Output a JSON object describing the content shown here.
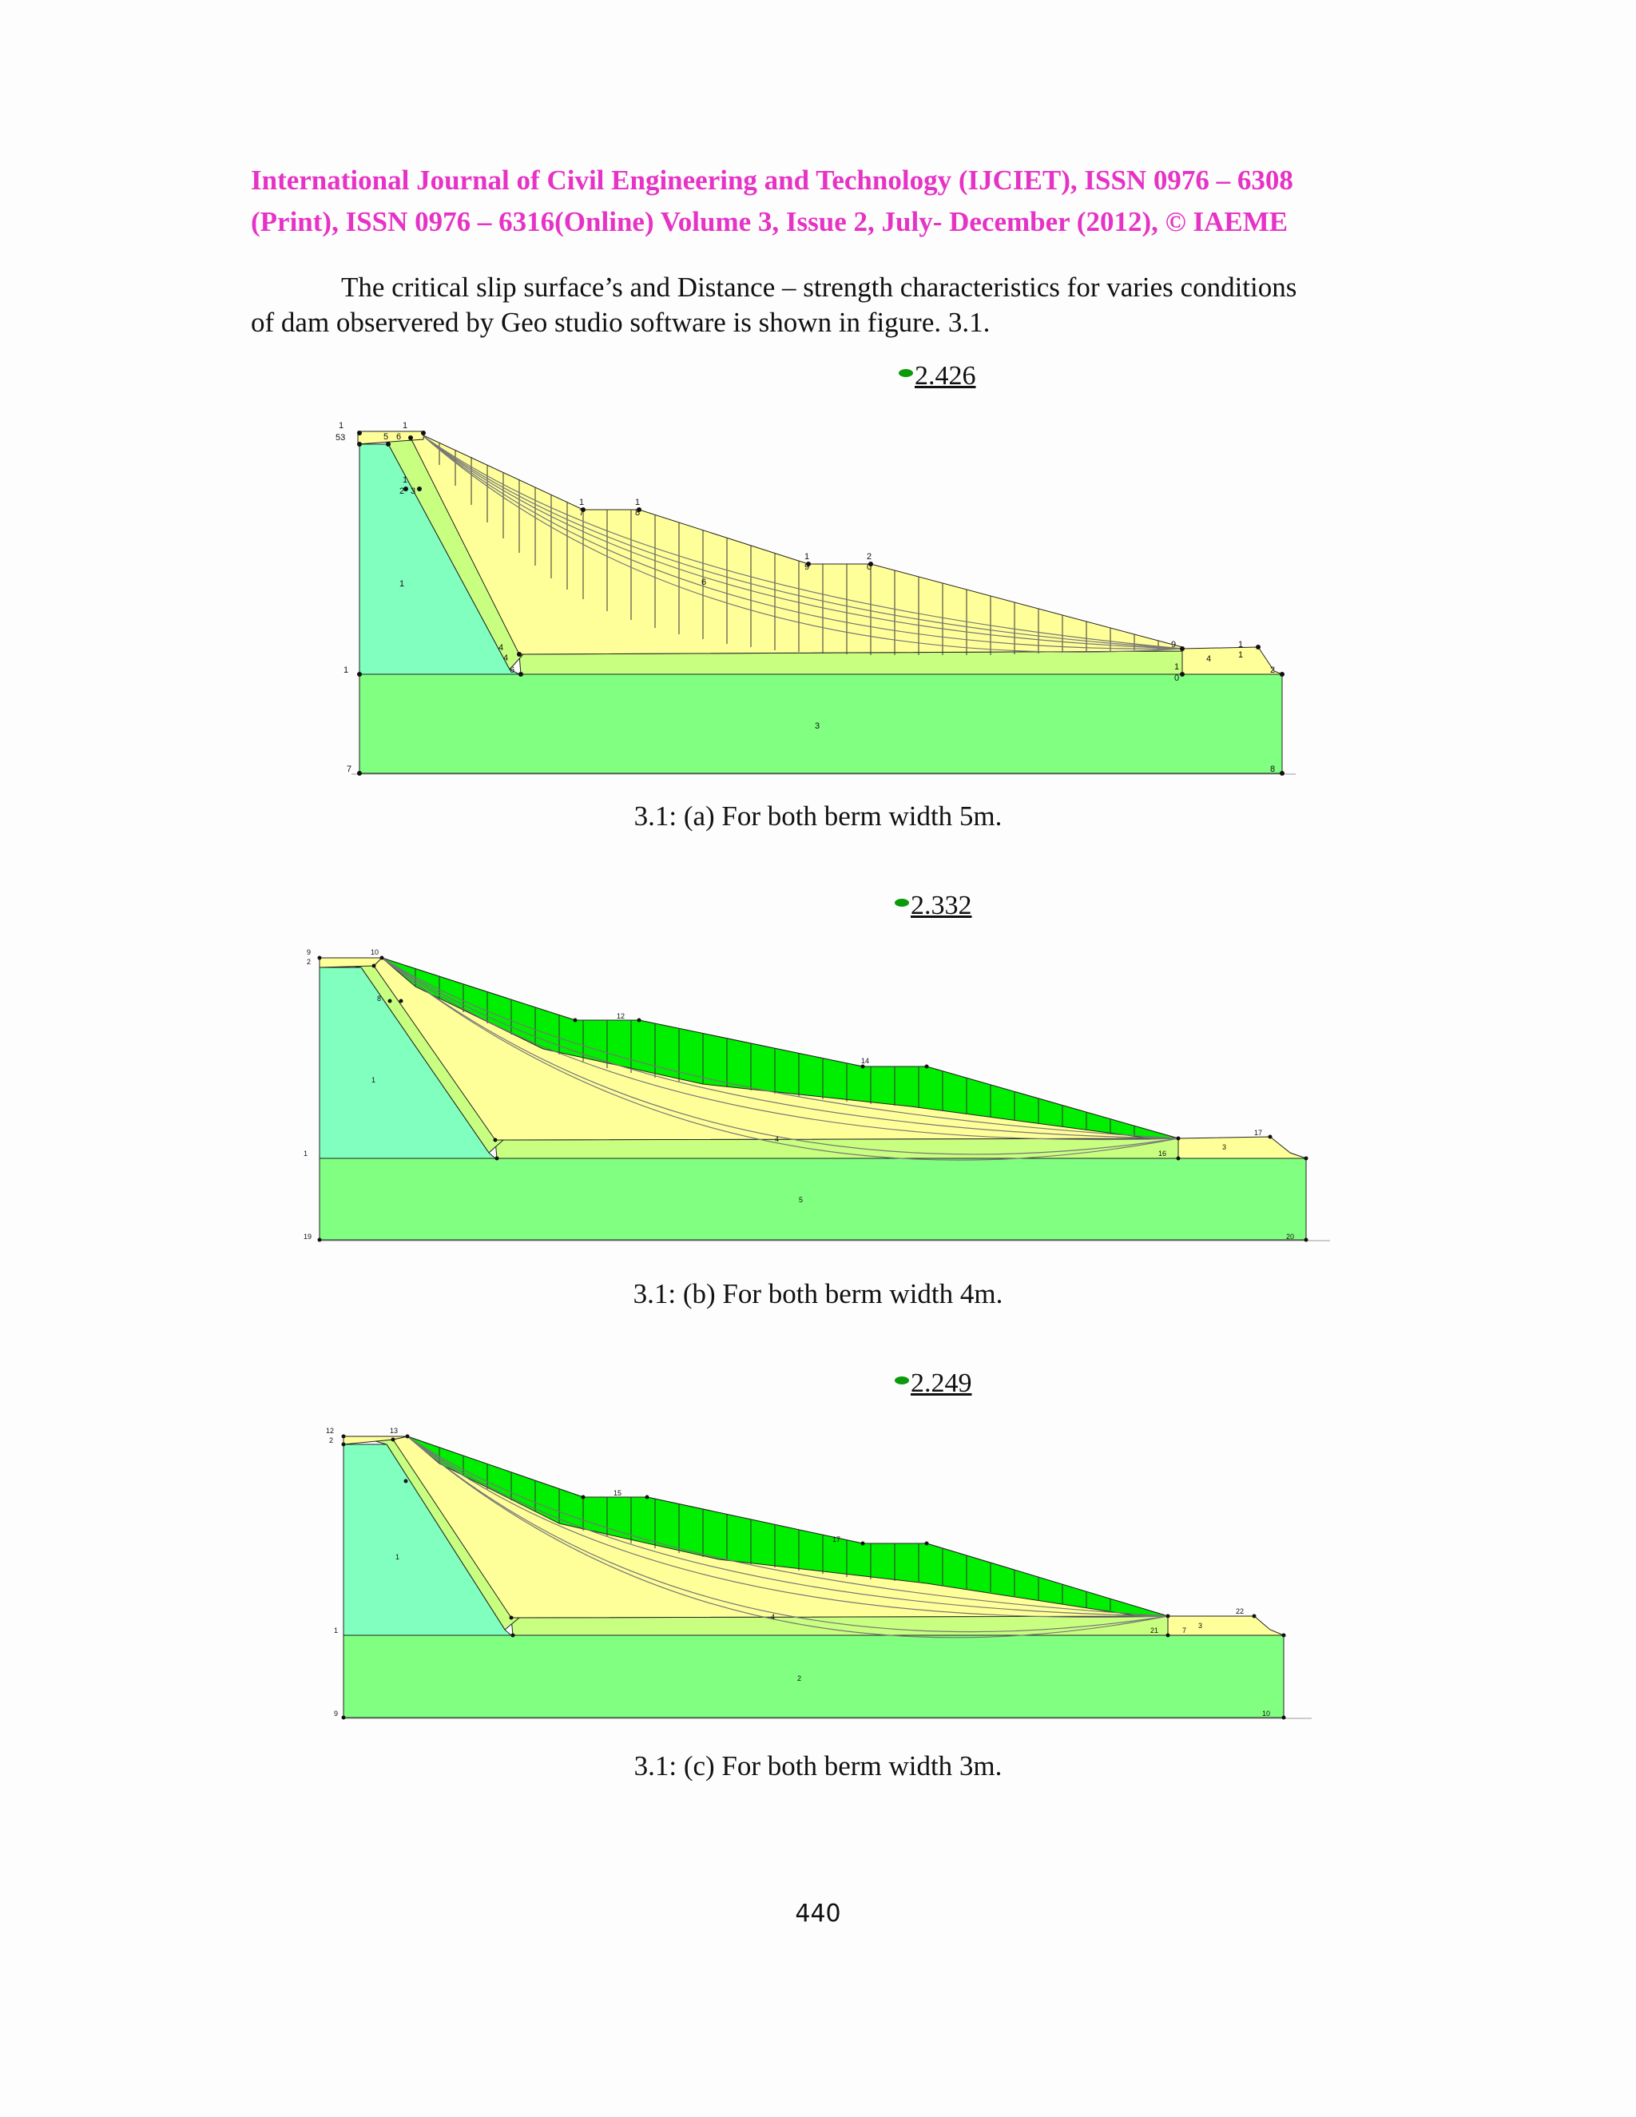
{
  "header": {
    "line1": "International Journal of Civil Engineering and Technology (IJCIET), ISSN 0976 – 6308",
    "line2": "(Print), ISSN 0976 – 6316(Online) Volume 3, Issue 2, July- December (2012), © IAEME"
  },
  "intro": {
    "line1": "The critical slip surface’s and Distance – strength characteristics for varies conditions",
    "line2": "of dam observered by Geo studio software is shown in figure. 3.1."
  },
  "figures": [
    {
      "factor_of_safety": "2.426",
      "caption": "3.1: (a) For both berm width 5m.",
      "node_labels": [
        "1",
        "53",
        "5",
        "6",
        "1",
        "1",
        "2",
        "3",
        "1",
        "7",
        "1",
        "8",
        "1",
        "9",
        "2",
        "0",
        "6",
        "9",
        "1",
        "1",
        "4",
        "1",
        "0",
        "4",
        "4",
        "6",
        "1",
        "3",
        "7",
        "8"
      ]
    },
    {
      "factor_of_safety": "2.332",
      "caption": "3.1: (b) For both berm width 4m.",
      "node_labels": [
        "9",
        "2",
        "10",
        "8",
        "1",
        "12",
        "14",
        "17",
        "3",
        "16",
        "4",
        "5",
        "1",
        "19",
        "20"
      ]
    },
    {
      "factor_of_safety": "2.249",
      "caption": "3.1: (c) For both berm width 3m.",
      "node_labels": [
        "12",
        "2",
        "13",
        "15",
        "17",
        "1",
        "22",
        "3",
        "21",
        "7",
        "4",
        "1",
        "2",
        "9",
        "10"
      ]
    }
  ],
  "page_number": "440",
  "colors": {
    "header": "#e633c6",
    "core": "#80ffbf",
    "shell": "#ffff99",
    "foundation": "#80ff80",
    "filter": "#c8ff80",
    "slice_fill_bc": "#00ee00"
  }
}
